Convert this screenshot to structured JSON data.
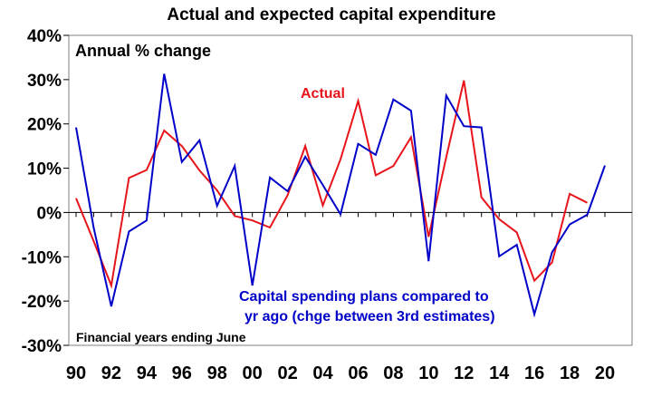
{
  "chart_data": {
    "type": "line",
    "title": "Actual and expected capital expenditure",
    "subtitle": "Annual % change",
    "xlabel": "Financial years ending June",
    "ylabel": "",
    "ylim": [
      -30,
      40
    ],
    "yticks": [
      -30,
      -20,
      -10,
      0,
      10,
      20,
      30,
      40
    ],
    "ytick_labels": [
      "-30%",
      "-20%",
      "-10%",
      "0%",
      "10%",
      "20%",
      "30%",
      "40%"
    ],
    "xlim": [
      1990,
      2020
    ],
    "xtick_labels": [
      "90",
      "92",
      "94",
      "96",
      "98",
      "00",
      "02",
      "04",
      "06",
      "08",
      "10",
      "12",
      "14",
      "16",
      "18",
      "20"
    ],
    "xtick_years": [
      1990,
      1992,
      1994,
      1996,
      1998,
      2000,
      2002,
      2004,
      2006,
      2008,
      2010,
      2012,
      2014,
      2016,
      2018,
      2020
    ],
    "grid": false,
    "zero_line": true,
    "series": [
      {
        "name": "Actual",
        "color": "#e8141b",
        "x": [
          1990,
          1991,
          1992,
          1993,
          1994,
          1995,
          1996,
          1997,
          1998,
          1999,
          2000,
          2001,
          2002,
          2003,
          2004,
          2005,
          2006,
          2007,
          2008,
          2009,
          2010,
          2011,
          2012,
          2013,
          2014,
          2015,
          2016,
          2017,
          2018,
          2019
        ],
        "values": [
          3.2,
          -6.5,
          -16.5,
          7.8,
          9.6,
          18.5,
          15.0,
          9.5,
          5.0,
          -0.8,
          -1.8,
          -3.4,
          3.9,
          15.0,
          1.6,
          12.0,
          25.2,
          8.4,
          10.5,
          17.0,
          -5.5,
          12.5,
          29.8,
          3.4,
          -1.5,
          -4.5,
          -15.4,
          -11.3,
          4.2,
          2.2
        ]
      },
      {
        "name": "Capital spending plans compared to yr ago (chge between 3rd estimates)",
        "name_lines": [
          "Capital spending plans compared to",
          "yr ago (chge between 3rd estimates)"
        ],
        "color": "#0000c8",
        "x": [
          1990,
          1991,
          1992,
          1993,
          1994,
          1995,
          1996,
          1997,
          1998,
          1999,
          2000,
          2001,
          2002,
          2003,
          2004,
          2005,
          2006,
          2007,
          2008,
          2009,
          2010,
          2011,
          2012,
          2013,
          2014,
          2015,
          2016,
          2017,
          2018,
          2019,
          2020
        ],
        "values": [
          19.2,
          -3.5,
          -21.2,
          -4.3,
          -1.8,
          31.3,
          11.4,
          16.3,
          1.5,
          10.5,
          -16.5,
          7.9,
          4.8,
          12.6,
          6.2,
          -0.4,
          15.5,
          13.0,
          25.5,
          23.0,
          -11.0,
          26.4,
          19.5,
          19.2,
          -9.9,
          -7.3,
          -23.0,
          -9.0,
          -2.7,
          -0.5,
          10.6
        ]
      }
    ]
  }
}
